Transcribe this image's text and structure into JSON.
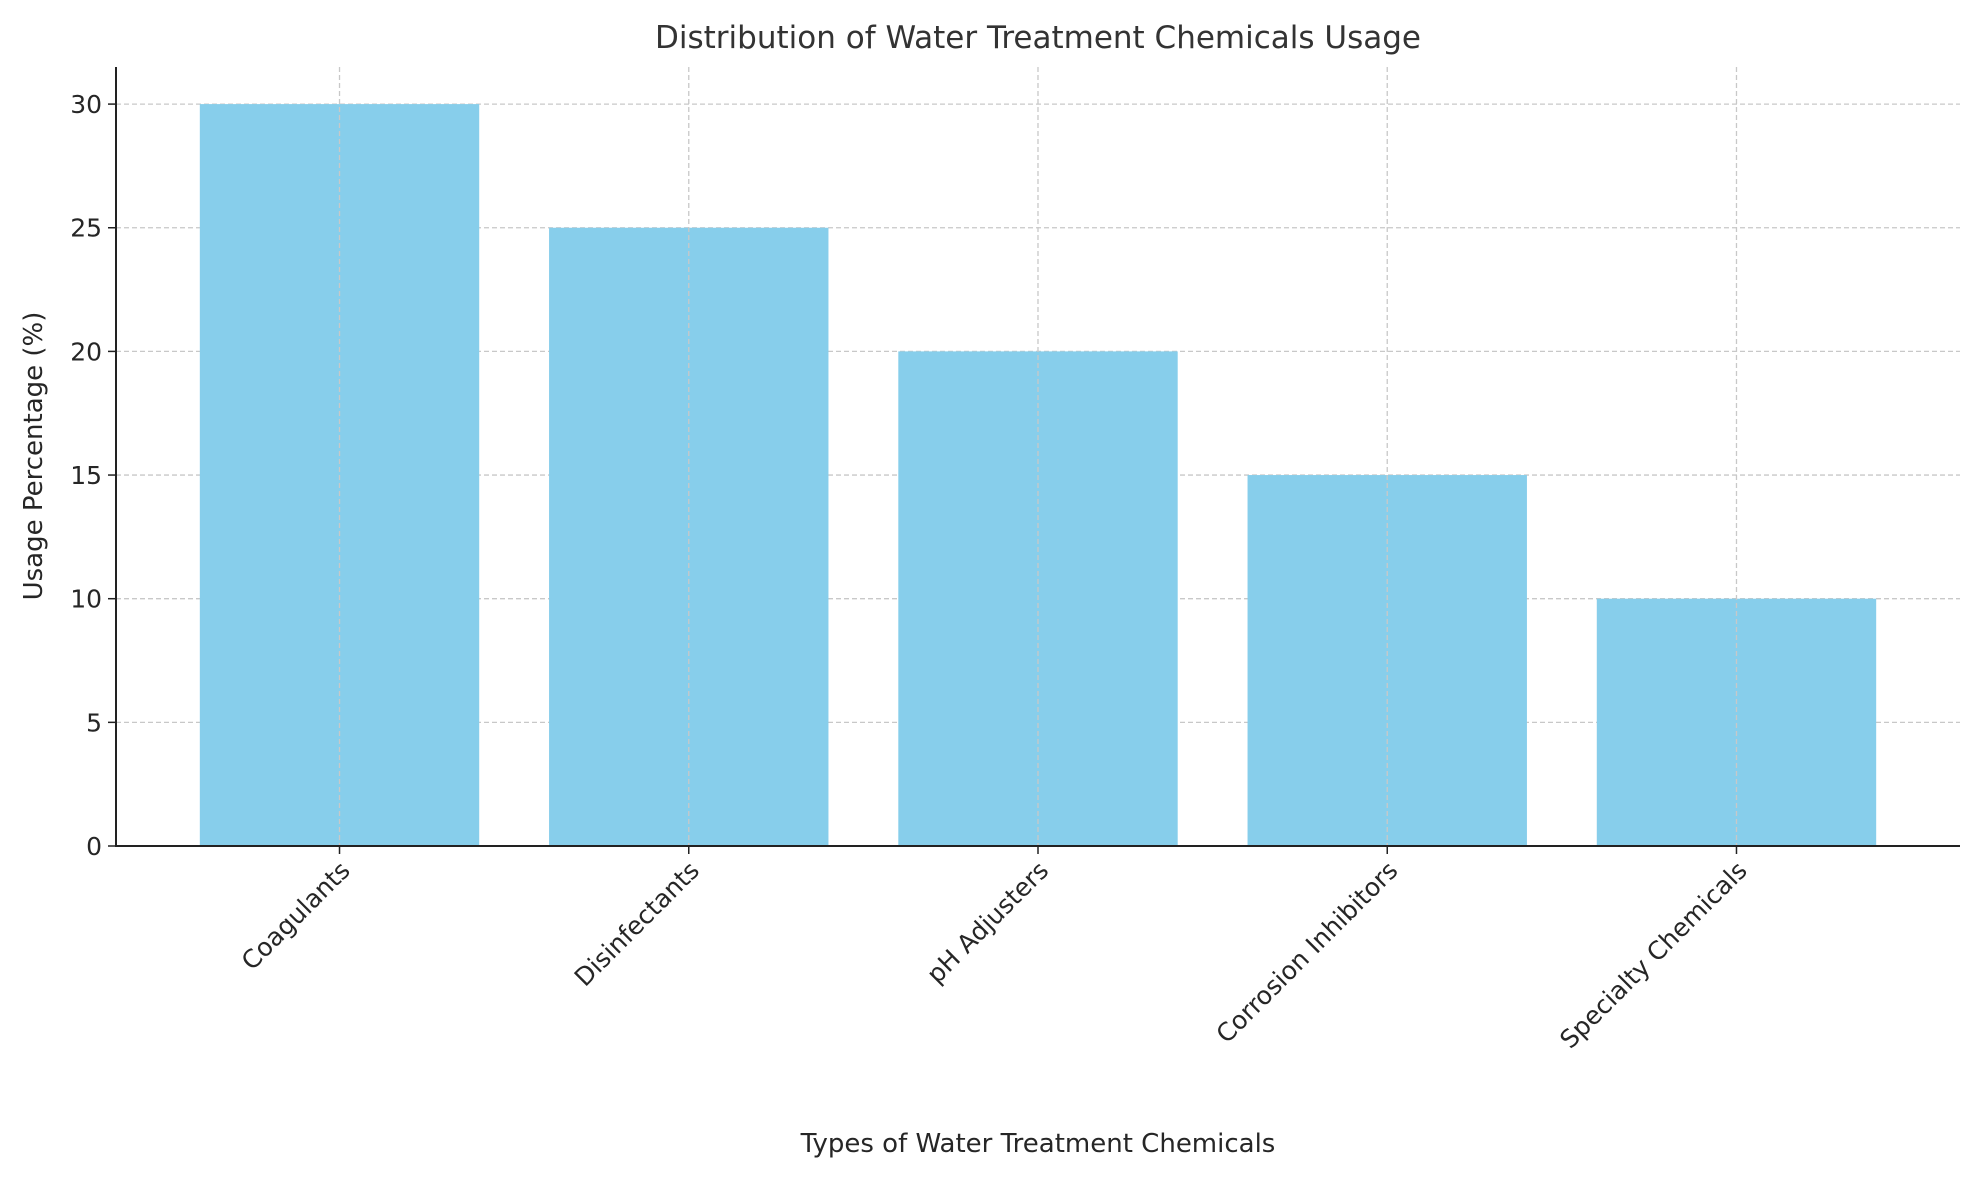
{
  "chart_data": {
    "type": "bar",
    "title": "Distribution of Water Treatment Chemicals Usage",
    "xlabel": "Types of Water Treatment Chemicals",
    "ylabel": "Usage Percentage (%)",
    "categories": [
      "Coagulants",
      "Disinfectants",
      "pH Adjusters",
      "Corrosion Inhibitors",
      "Specialty Chemicals"
    ],
    "values": [
      30,
      25,
      20,
      15,
      10
    ],
    "ylim": [
      0,
      31.5
    ],
    "yticks": [
      0,
      5,
      10,
      15,
      20,
      25,
      30
    ],
    "grid": true,
    "bar_color": "#87CEEB"
  }
}
